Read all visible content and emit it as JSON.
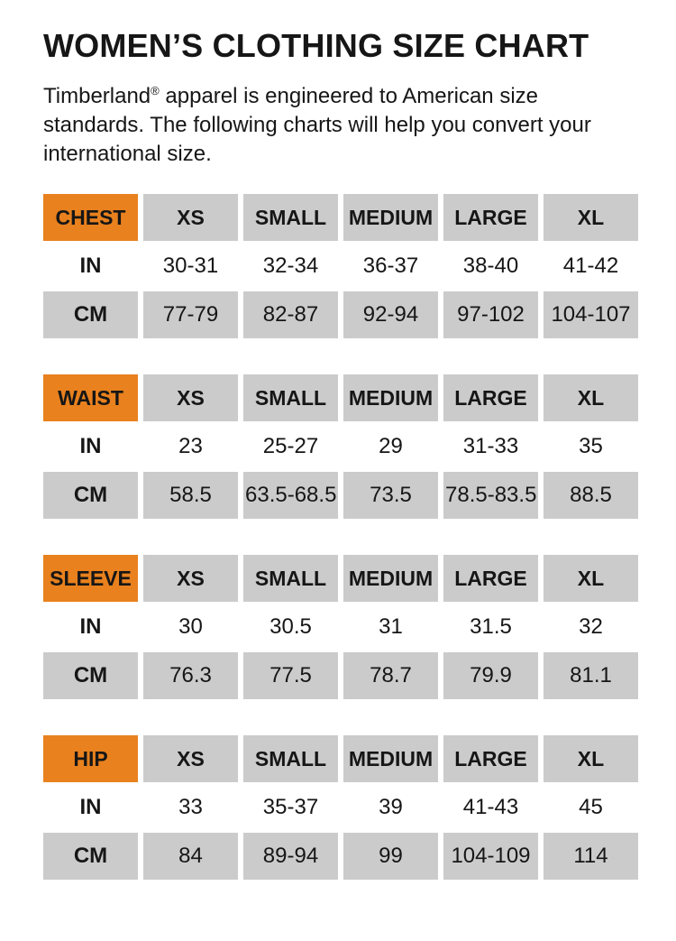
{
  "page": {
    "title": "WOMEN’S CLOTHING SIZE CHART"
  },
  "intro": {
    "brand": "Timberland",
    "registered_mark": "®",
    "rest": " apparel is engineered to American size\nstandards. The following charts will help you convert your\ninternational size."
  },
  "colors": {
    "accent_orange": "#E8811E",
    "cell_gray": "#CBCBCB",
    "text_color": "#161616",
    "background": "#FFFFFF"
  },
  "tables": [
    {
      "label": "CHEST",
      "sizes": [
        "XS",
        "SMALL",
        "MEDIUM",
        "LARGE",
        "XL"
      ],
      "rows": [
        {
          "unit": "IN",
          "values": [
            "30-31",
            "32-34",
            "36-37",
            "38-40",
            "41-42"
          ]
        },
        {
          "unit": "CM",
          "values": [
            "77-79",
            "82-87",
            "92-94",
            "97-102",
            "104-107"
          ]
        }
      ]
    },
    {
      "label": "WAIST",
      "sizes": [
        "XS",
        "SMALL",
        "MEDIUM",
        "LARGE",
        "XL"
      ],
      "rows": [
        {
          "unit": "IN",
          "values": [
            "23",
            "25-27",
            "29",
            "31-33",
            "35"
          ]
        },
        {
          "unit": "CM",
          "values": [
            "58.5",
            "63.5-68.5",
            "73.5",
            "78.5-83.5",
            "88.5"
          ]
        }
      ]
    },
    {
      "label": "SLEEVE",
      "sizes": [
        "XS",
        "SMALL",
        "MEDIUM",
        "LARGE",
        "XL"
      ],
      "rows": [
        {
          "unit": "IN",
          "values": [
            "30",
            "30.5",
            "31",
            "31.5",
            "32"
          ]
        },
        {
          "unit": "CM",
          "values": [
            "76.3",
            "77.5",
            "78.7",
            "79.9",
            "81.1"
          ]
        }
      ]
    },
    {
      "label": "HIP",
      "sizes": [
        "XS",
        "SMALL",
        "MEDIUM",
        "LARGE",
        "XL"
      ],
      "rows": [
        {
          "unit": "IN",
          "values": [
            "33",
            "35-37",
            "39",
            "41-43",
            "45"
          ]
        },
        {
          "unit": "CM",
          "values": [
            "84",
            "89-94",
            "99",
            "104-109",
            "114"
          ]
        }
      ]
    }
  ]
}
